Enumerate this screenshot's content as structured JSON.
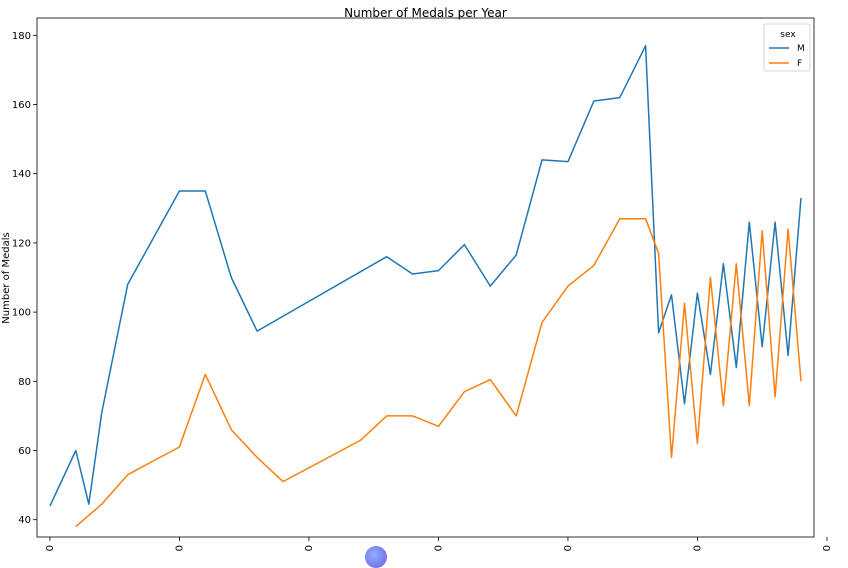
{
  "chart_data": {
    "type": "line",
    "title": "Number of Medals per Year",
    "xlabel": "",
    "ylabel": "Number of Medals",
    "ylim": [
      35,
      185
    ],
    "yticks": [
      40,
      60,
      80,
      100,
      120,
      140,
      160,
      180
    ],
    "xlim": [
      -0.5,
      29.5
    ],
    "xtick_positions": [
      0,
      5,
      10,
      15,
      20,
      25,
      30
    ],
    "xtick_labels": [
      "0",
      "0",
      "0",
      "0",
      "0",
      "0",
      "0"
    ],
    "legend": {
      "title": "sex",
      "placement": "top-right"
    },
    "grid": false,
    "series": [
      {
        "name": "M",
        "color": "#1f77b4",
        "points": [
          [
            0,
            44
          ],
          [
            1,
            60
          ],
          [
            1.5,
            44.5
          ],
          [
            2,
            71
          ],
          [
            3,
            108
          ],
          [
            5,
            135
          ],
          [
            6,
            135
          ],
          [
            7,
            110
          ],
          [
            8,
            94.5
          ],
          [
            13,
            116
          ],
          [
            14,
            111
          ],
          [
            15,
            112
          ],
          [
            16,
            119.5
          ],
          [
            17,
            107.5
          ],
          [
            18,
            116.5
          ],
          [
            19,
            144
          ],
          [
            20,
            143.5
          ],
          [
            21,
            161
          ],
          [
            22,
            162
          ],
          [
            23,
            177
          ],
          [
            23.5,
            94
          ],
          [
            24,
            105
          ],
          [
            24.5,
            73.5
          ],
          [
            25,
            105.5
          ],
          [
            25.5,
            82
          ],
          [
            26,
            114
          ],
          [
            26.5,
            84
          ],
          [
            27,
            126
          ],
          [
            27.5,
            90
          ],
          [
            28,
            126
          ],
          [
            28.5,
            87.5
          ],
          [
            29,
            133
          ]
        ]
      },
      {
        "name": "F",
        "color": "#ff7f0e",
        "points": [
          [
            1,
            38
          ],
          [
            2,
            44.5
          ],
          [
            3,
            53
          ],
          [
            5,
            61
          ],
          [
            6,
            82
          ],
          [
            7,
            66
          ],
          [
            8,
            58
          ],
          [
            9,
            51
          ],
          [
            12,
            63
          ],
          [
            13,
            70
          ],
          [
            14,
            70
          ],
          [
            15,
            67
          ],
          [
            16,
            77
          ],
          [
            17,
            80.5
          ],
          [
            18,
            70
          ],
          [
            19,
            97
          ],
          [
            20,
            107.5
          ],
          [
            21,
            113.5
          ],
          [
            22,
            127
          ],
          [
            23,
            127
          ],
          [
            23.5,
            117
          ],
          [
            24,
            58
          ],
          [
            24.5,
            102.5
          ],
          [
            25,
            62
          ],
          [
            25.5,
            110
          ],
          [
            26,
            73
          ],
          [
            26.5,
            114
          ],
          [
            27,
            73
          ],
          [
            27.5,
            123.5
          ],
          [
            28,
            75.5
          ],
          [
            28.5,
            124
          ],
          [
            29,
            80
          ]
        ]
      }
    ]
  }
}
